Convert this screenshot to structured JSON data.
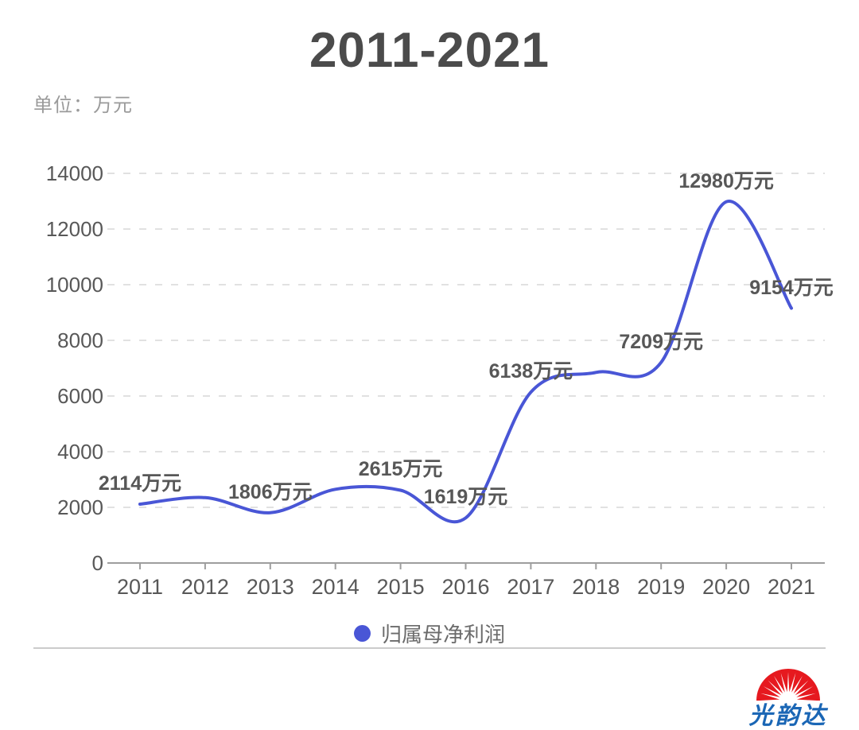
{
  "header": {
    "title": "2011-2021",
    "unit_label": "单位：万元"
  },
  "legend": {
    "label": "归属母净利润",
    "marker_color": "#4956d6"
  },
  "logo": {
    "company": "光韵达",
    "sun_color": "#e6191f",
    "text_color": "#1a66b5"
  },
  "chart_data": {
    "type": "line",
    "smooth": true,
    "title": "2011-2021",
    "unit": "万元",
    "categories": [
      "2011",
      "2012",
      "2013",
      "2014",
      "2015",
      "2016",
      "2017",
      "2018",
      "2019",
      "2020",
      "2021"
    ],
    "series": [
      {
        "name": "归属母净利润",
        "color": "#4956d6",
        "values": [
          2114,
          2350,
          1806,
          2650,
          2615,
          1619,
          6138,
          6850,
          7209,
          12980,
          9154
        ],
        "point_labels": [
          "2114万元",
          "",
          "1806万元",
          "",
          "2615万元",
          "1619万元",
          "6138万元",
          "",
          "7209万元",
          "12980万元",
          "9154万元"
        ],
        "estimated_indices": [
          1,
          3,
          7
        ]
      }
    ],
    "xlabel": "",
    "ylabel": "",
    "ylim": [
      0,
      14000
    ],
    "yticks": [
      0,
      2000,
      4000,
      6000,
      8000,
      10000,
      12000,
      14000
    ],
    "grid": {
      "horizontal": true,
      "style": "dashed",
      "color": "#e1e1e1"
    },
    "axis_color": "#9e9e9e",
    "legend_position": "bottom"
  }
}
